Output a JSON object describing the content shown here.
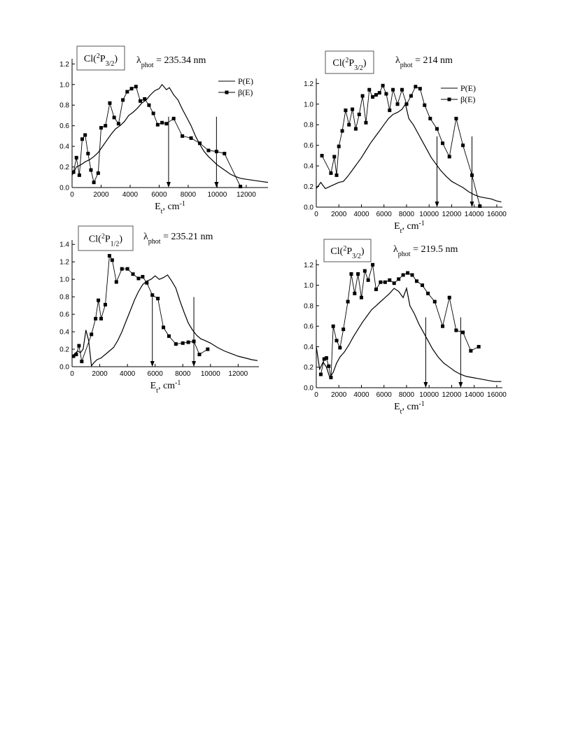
{
  "chart_data": [
    {
      "type": "line",
      "species": "Cl(",
      "species_state_sup": "2",
      "species_state_main": "P",
      "species_state_sub": "3/2",
      "species_close": ")",
      "lambda_symbol": "λ",
      "lambda_sub": "phot",
      "lambda_value": " = 235.34 nm",
      "xlabel_main": "E",
      "xlabel_sub": "t",
      "xlabel_unit": ", cm",
      "xlabel_sup": "-1",
      "xlim": [
        0,
        13500
      ],
      "ylim": [
        0,
        1.25
      ],
      "xticks": [
        0,
        2000,
        4000,
        6000,
        8000,
        10000,
        12000
      ],
      "yticks": [
        0.0,
        0.2,
        0.4,
        0.6,
        0.8,
        1.0,
        1.2
      ],
      "ytick_decimals": 1,
      "legend": [
        "P(E)",
        "β(E)"
      ],
      "legend_position": "top-right",
      "arrows_x": [
        6650,
        9950
      ],
      "series": [
        {
          "name": "P(E)",
          "marker": "none",
          "x": [
            0,
            300,
            600,
            900,
            1200,
            1500,
            1800,
            2100,
            2400,
            2700,
            3000,
            3300,
            3600,
            3900,
            4200,
            4500,
            4800,
            5100,
            5400,
            5700,
            6000,
            6200,
            6500,
            6700,
            7000,
            7300,
            7600,
            7900,
            8200,
            8500,
            8800,
            9100,
            9400,
            9700,
            10000,
            10300,
            10600,
            10900,
            11200,
            11600,
            12000,
            12500,
            13000,
            13500
          ],
          "y": [
            0.12,
            0.2,
            0.22,
            0.25,
            0.27,
            0.3,
            0.34,
            0.4,
            0.46,
            0.52,
            0.57,
            0.6,
            0.64,
            0.7,
            0.73,
            0.77,
            0.82,
            0.85,
            0.9,
            0.94,
            0.96,
            1.0,
            0.95,
            0.97,
            0.9,
            0.85,
            0.76,
            0.68,
            0.6,
            0.5,
            0.42,
            0.35,
            0.3,
            0.26,
            0.22,
            0.19,
            0.16,
            0.13,
            0.11,
            0.09,
            0.08,
            0.07,
            0.06,
            0.05
          ]
        },
        {
          "name": "β(E)",
          "marker": "square",
          "x": [
            100,
            300,
            500,
            700,
            900,
            1100,
            1300,
            1500,
            1800,
            2000,
            2300,
            2600,
            2900,
            3200,
            3500,
            3800,
            4100,
            4400,
            4700,
            5000,
            5300,
            5600,
            5900,
            6200,
            6500,
            7000,
            7600,
            8200,
            8800,
            9400,
            9950,
            10500,
            11600
          ],
          "y": [
            0.15,
            0.29,
            0.12,
            0.47,
            0.51,
            0.33,
            0.17,
            0.05,
            0.14,
            0.58,
            0.6,
            0.82,
            0.68,
            0.62,
            0.85,
            0.93,
            0.96,
            0.98,
            0.84,
            0.86,
            0.8,
            0.72,
            0.61,
            0.63,
            0.62,
            0.67,
            0.5,
            0.48,
            0.43,
            0.36,
            0.35,
            0.33,
            0.01
          ]
        }
      ]
    },
    {
      "type": "line",
      "species": "Cl(",
      "species_state_sup": "2",
      "species_state_main": "P",
      "species_state_sub": "3/2",
      "species_close": ")",
      "lambda_symbol": "λ",
      "lambda_sub": "phot",
      "lambda_value": " = 214 nm",
      "xlabel_main": "E",
      "xlabel_sub": "t",
      "xlabel_unit": ", cm",
      "xlabel_sup": "-1",
      "xlim": [
        0,
        16500
      ],
      "ylim": [
        0,
        1.25
      ],
      "xticks": [
        0,
        2000,
        4000,
        6000,
        8000,
        10000,
        12000,
        14000,
        16000
      ],
      "yticks": [
        0.0,
        0.2,
        0.4,
        0.6,
        0.8,
        1.0,
        1.2
      ],
      "ytick_decimals": 1,
      "legend": [
        "P(E)",
        "β(E)"
      ],
      "legend_position": "top-right",
      "arrows_x": [
        10700,
        13800
      ],
      "series": [
        {
          "name": "P(E)",
          "marker": "none",
          "x": [
            0,
            400,
            800,
            1200,
            1600,
            2000,
            2400,
            2800,
            3200,
            3600,
            4000,
            4400,
            4800,
            5200,
            5600,
            6000,
            6400,
            6800,
            7200,
            7600,
            7900,
            8200,
            8600,
            9000,
            9400,
            9800,
            10200,
            10600,
            11000,
            11500,
            12000,
            12500,
            13000,
            13500,
            14000,
            14500,
            15000,
            15500,
            16000,
            16400
          ],
          "y": [
            0.18,
            0.24,
            0.18,
            0.2,
            0.22,
            0.24,
            0.25,
            0.3,
            0.36,
            0.42,
            0.48,
            0.55,
            0.62,
            0.68,
            0.74,
            0.8,
            0.86,
            0.9,
            0.92,
            0.95,
            1.0,
            0.86,
            0.8,
            0.72,
            0.64,
            0.56,
            0.48,
            0.42,
            0.36,
            0.3,
            0.25,
            0.22,
            0.19,
            0.15,
            0.12,
            0.1,
            0.09,
            0.08,
            0.06,
            0.05
          ]
        },
        {
          "name": "β(E)",
          "marker": "square",
          "x": [
            500,
            1300,
            1600,
            1800,
            2000,
            2300,
            2600,
            2900,
            3200,
            3500,
            3800,
            4100,
            4400,
            4700,
            5000,
            5300,
            5600,
            5900,
            6200,
            6500,
            6800,
            7200,
            7600,
            8000,
            8400,
            8800,
            9200,
            9600,
            10100,
            10700,
            11200,
            11800,
            12400,
            13000,
            13800,
            14500
          ],
          "y": [
            0.5,
            0.33,
            0.49,
            0.31,
            0.59,
            0.74,
            0.94,
            0.8,
            0.95,
            0.76,
            0.9,
            1.08,
            0.82,
            1.14,
            1.07,
            1.09,
            1.11,
            1.18,
            1.1,
            0.94,
            1.14,
            1.0,
            1.14,
            1.0,
            1.08,
            1.17,
            1.15,
            0.99,
            0.86,
            0.76,
            0.62,
            0.49,
            0.86,
            0.6,
            0.31,
            0.01
          ]
        }
      ]
    },
    {
      "type": "line",
      "species": "Cl(",
      "species_state_sup": "2",
      "species_state_main": "P",
      "species_state_sub": "1/2",
      "species_close": ")",
      "lambda_symbol": "λ",
      "lambda_sub": "phot",
      "lambda_value": " = 235.21 nm",
      "xlabel_main": "E",
      "xlabel_sub": "t",
      "xlabel_unit": ", cm",
      "xlabel_sup": "-1",
      "xlim": [
        0,
        13500
      ],
      "ylim": [
        0,
        1.45
      ],
      "xticks": [
        0,
        2000,
        4000,
        6000,
        8000,
        10000,
        12000
      ],
      "yticks": [
        0.0,
        0.2,
        0.4,
        0.6,
        0.8,
        1.0,
        1.2,
        1.4
      ],
      "ytick_decimals": 1,
      "legend": [],
      "arrows_x": [
        5800,
        8800
      ],
      "series": [
        {
          "name": "P(E)",
          "marker": "none",
          "x": [
            0,
            200,
            400,
            600,
            800,
            1000,
            1200,
            1400,
            1600,
            1800,
            2100,
            2400,
            2700,
            3000,
            3300,
            3600,
            3900,
            4200,
            4500,
            4800,
            5100,
            5400,
            5700,
            6000,
            6300,
            6600,
            6900,
            7200,
            7500,
            7800,
            8100,
            8400,
            8700,
            9000,
            9300,
            9600,
            10000,
            10500,
            11000,
            11500,
            12000,
            12500,
            13000,
            13400
          ],
          "y": [
            0.12,
            0.15,
            0.18,
            0.16,
            0.2,
            0.42,
            0.3,
            0.01,
            0.05,
            0.08,
            0.1,
            0.14,
            0.18,
            0.22,
            0.3,
            0.4,
            0.52,
            0.64,
            0.76,
            0.86,
            0.94,
            0.98,
            1.0,
            1.04,
            1.0,
            1.02,
            1.05,
            0.98,
            0.9,
            0.75,
            0.62,
            0.5,
            0.42,
            0.36,
            0.32,
            0.3,
            0.27,
            0.22,
            0.18,
            0.15,
            0.12,
            0.1,
            0.08,
            0.07
          ]
        },
        {
          "name": "β(E)",
          "marker": "square",
          "x": [
            100,
            300,
            500,
            700,
            1400,
            1700,
            1900,
            2100,
            2400,
            2700,
            2900,
            3200,
            3600,
            4000,
            4400,
            4800,
            5100,
            5400,
            5800,
            6200,
            6600,
            7000,
            7500,
            8000,
            8400,
            8800,
            9200,
            9800
          ],
          "y": [
            0.12,
            0.14,
            0.24,
            0.06,
            0.37,
            0.55,
            0.76,
            0.55,
            0.71,
            1.27,
            1.22,
            0.97,
            1.12,
            1.12,
            1.06,
            1.01,
            1.03,
            0.96,
            0.82,
            0.78,
            0.45,
            0.35,
            0.26,
            0.27,
            0.28,
            0.29,
            0.14,
            0.2
          ]
        }
      ]
    },
    {
      "type": "line",
      "species": "Cl(",
      "species_state_sup": "2",
      "species_state_main": "P",
      "species_state_sub": "3/2",
      "species_close": ")",
      "lambda_symbol": "λ",
      "lambda_sub": "phot",
      "lambda_value": " = 219.5 nm",
      "xlabel_main": "E",
      "xlabel_sub": "t",
      "xlabel_unit": ", cm",
      "xlabel_sup": "-1",
      "xlim": [
        0,
        16500
      ],
      "ylim": [
        0,
        1.25
      ],
      "xticks": [
        0,
        2000,
        4000,
        6000,
        8000,
        10000,
        12000,
        14000,
        16000
      ],
      "yticks": [
        0.0,
        0.2,
        0.4,
        0.6,
        0.8,
        1.0,
        1.2
      ],
      "ytick_decimals": 1,
      "legend": [],
      "arrows_x": [
        9700,
        12800
      ],
      "series": [
        {
          "name": "P(E)",
          "marker": "none",
          "x": [
            0,
            300,
            600,
            900,
            1200,
            1500,
            1800,
            2100,
            2500,
            2900,
            3300,
            3700,
            4100,
            4500,
            4900,
            5300,
            5700,
            6100,
            6500,
            6900,
            7300,
            7700,
            8000,
            8300,
            8700,
            9100,
            9500,
            9900,
            10300,
            10800,
            11300,
            11800,
            12300,
            12800,
            13300,
            13800,
            14300,
            14800,
            15300,
            15800,
            16400
          ],
          "y": [
            0.4,
            0.18,
            0.25,
            0.2,
            0.1,
            0.15,
            0.24,
            0.3,
            0.35,
            0.42,
            0.5,
            0.57,
            0.64,
            0.7,
            0.76,
            0.8,
            0.84,
            0.88,
            0.92,
            0.97,
            0.94,
            0.88,
            0.97,
            0.8,
            0.72,
            0.62,
            0.54,
            0.46,
            0.38,
            0.3,
            0.24,
            0.2,
            0.16,
            0.13,
            0.11,
            0.1,
            0.09,
            0.08,
            0.07,
            0.06,
            0.06
          ]
        },
        {
          "name": "β(E)",
          "marker": "square",
          "x": [
            400,
            700,
            900,
            1100,
            1300,
            1500,
            1800,
            2100,
            2400,
            2800,
            3100,
            3400,
            3700,
            4000,
            4300,
            4600,
            5000,
            5300,
            5700,
            6100,
            6500,
            6900,
            7300,
            7700,
            8100,
            8500,
            8900,
            9400,
            9900,
            10500,
            11200,
            11800,
            12400,
            13000,
            13700,
            14400
          ],
          "y": [
            0.13,
            0.28,
            0.29,
            0.21,
            0.1,
            0.6,
            0.46,
            0.39,
            0.57,
            0.84,
            1.11,
            0.92,
            1.11,
            0.88,
            1.14,
            1.05,
            1.2,
            0.96,
            1.03,
            1.03,
            1.05,
            1.02,
            1.06,
            1.1,
            1.12,
            1.1,
            1.04,
            1.0,
            0.92,
            0.84,
            0.6,
            0.88,
            0.56,
            0.54,
            0.36,
            0.4
          ]
        }
      ]
    }
  ]
}
